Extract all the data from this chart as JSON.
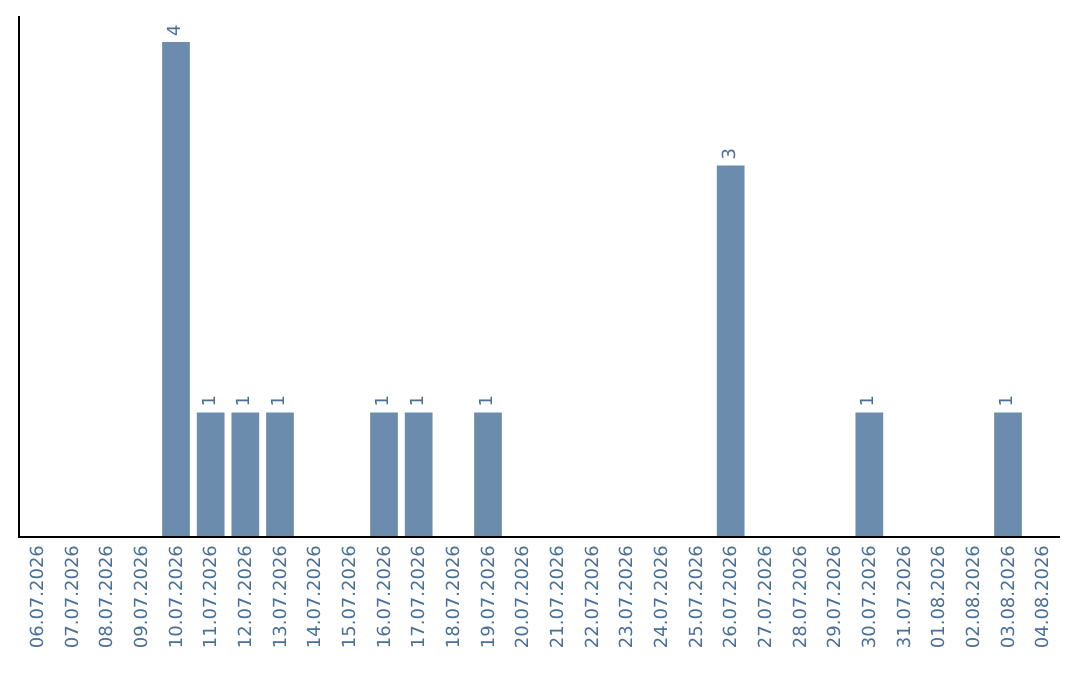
{
  "chart_data": {
    "type": "bar",
    "categories": [
      "06.07.2026",
      "07.07.2026",
      "08.07.2026",
      "09.07.2026",
      "10.07.2026",
      "11.07.2026",
      "12.07.2026",
      "13.07.2026",
      "14.07.2026",
      "15.07.2026",
      "16.07.2026",
      "17.07.2026",
      "18.07.2026",
      "19.07.2026",
      "20.07.2026",
      "21.07.2026",
      "22.07.2026",
      "23.07.2026",
      "24.07.2026",
      "25.07.2026",
      "26.07.2026",
      "27.07.2026",
      "28.07.2026",
      "29.07.2026",
      "30.07.2026",
      "31.07.2026",
      "01.08.2026",
      "02.08.2026",
      "03.08.2026",
      "04.08.2026"
    ],
    "values": [
      0,
      0,
      0,
      0,
      4,
      1,
      1,
      1,
      0,
      0,
      1,
      1,
      0,
      1,
      0,
      0,
      0,
      0,
      0,
      0,
      3,
      0,
      0,
      0,
      1,
      0,
      0,
      0,
      1,
      0
    ],
    "value_labels": [
      null,
      null,
      null,
      null,
      "4",
      "1",
      "1",
      "1",
      null,
      null,
      "1",
      "1",
      null,
      "1",
      null,
      null,
      null,
      null,
      null,
      null,
      "3",
      null,
      null,
      null,
      "1",
      null,
      null,
      null,
      "1",
      null
    ],
    "color": "#6b8cad",
    "tick_labels": "x",
    "legend": false
  }
}
